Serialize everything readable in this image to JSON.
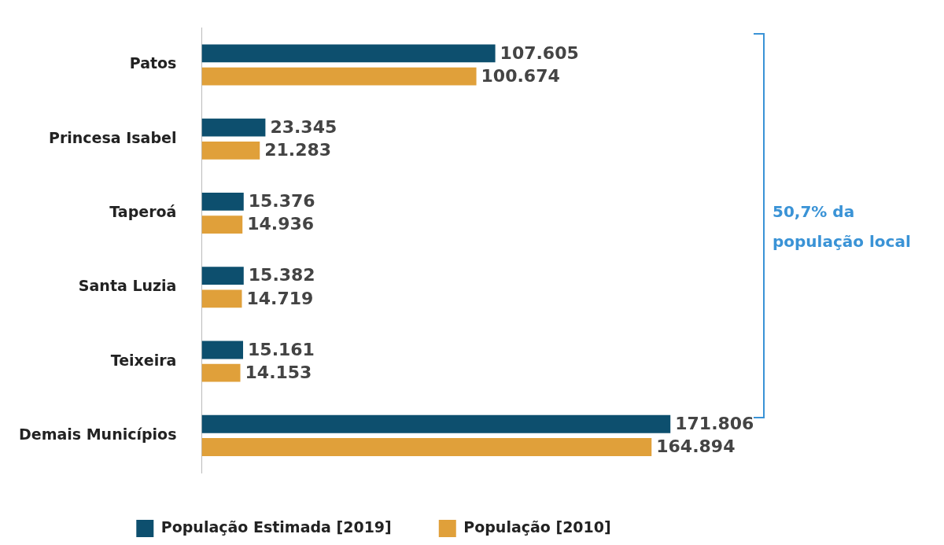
{
  "chart_data": {
    "type": "bar",
    "orientation": "horizontal",
    "categories": [
      "Patos",
      "Princesa Isabel",
      "Taperoá",
      "Santa Luzia",
      "Teixeira",
      "Demais Municípios"
    ],
    "series": [
      {
        "name": "População Estimada [2019]",
        "color": "#0d4f6e",
        "values": [
          107605,
          23345,
          15376,
          15382,
          15161,
          171806
        ],
        "value_labels": [
          "107.605",
          "23.345",
          "15.376",
          "15.382",
          "15.161",
          "171.806"
        ]
      },
      {
        "name": "População [2010]",
        "color": "#e0a03a",
        "values": [
          100674,
          21283,
          14936,
          14719,
          14153,
          164894
        ],
        "value_labels": [
          "100.674",
          "21.283",
          "14.936",
          "14.719",
          "14.153",
          "164.894"
        ]
      }
    ],
    "annotations": [
      "50,7% da população local"
    ],
    "legend": "bottom"
  }
}
